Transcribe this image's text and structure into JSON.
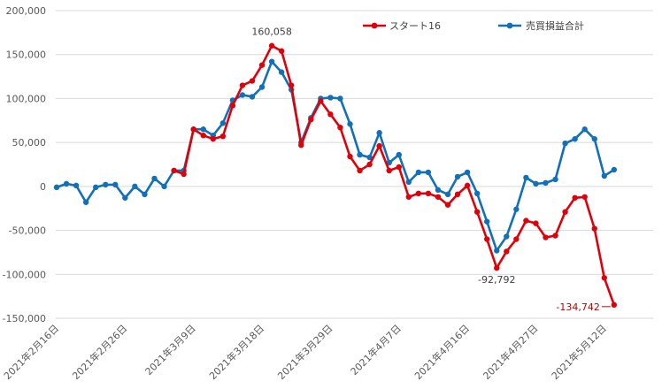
{
  "chart_data": {
    "type": "line",
    "title": "",
    "xlabel": "",
    "ylabel": "",
    "ylim": [
      -150000,
      200000
    ],
    "yticks": [
      200000,
      150000,
      100000,
      50000,
      0,
      -50000,
      -100000,
      -150000
    ],
    "ytick_labels": [
      "200,000",
      "150,000",
      "100,000",
      "50,000",
      "0",
      "-50,000",
      "-100,000",
      "-150,000"
    ],
    "x_tick_labels": [
      {
        "index": 0,
        "label": "2021年2月16日"
      },
      {
        "index": 7,
        "label": "2021年2月26日"
      },
      {
        "index": 14,
        "label": "2021年3月9日"
      },
      {
        "index": 21,
        "label": "2021年3月18日"
      },
      {
        "index": 28,
        "label": "2021年3月29日"
      },
      {
        "index": 35,
        "label": "2021年4月7日"
      },
      {
        "index": 42,
        "label": "2021年4月16日"
      },
      {
        "index": 49,
        "label": "2021年4月27日"
      },
      {
        "index": 56,
        "label": "2021年5月12日"
      }
    ],
    "grid": true,
    "legend_position": "top",
    "series": [
      {
        "name": "スタート16",
        "color": "#e0000a",
        "start_index": 12,
        "values": [
          18000,
          14000,
          65000,
          58000,
          54000,
          57000,
          92000,
          115000,
          120000,
          138000,
          160058,
          154000,
          115000,
          47000,
          76000,
          97000,
          82000,
          67000,
          34000,
          18000,
          25000,
          46000,
          18000,
          22000,
          -12000,
          -8000,
          -8000,
          -12000,
          -21000,
          -9000,
          1000,
          -29000,
          -60000,
          -92792,
          -74000,
          -60000,
          -39000,
          -42000,
          -58000,
          -56000,
          -29000,
          -13000,
          -12000,
          -48000,
          -104000,
          -134742
        ]
      },
      {
        "name": "売買損益合計",
        "color": "#1170b8",
        "start_index": 0,
        "values": [
          -1000,
          3000,
          1000,
          -18000,
          -1000,
          2000,
          2000,
          -13000,
          0,
          -9000,
          9000,
          0,
          18000,
          18000,
          65000,
          65000,
          58000,
          72000,
          98000,
          104000,
          102000,
          113000,
          142000,
          130000,
          110000,
          50000,
          78000,
          100000,
          101000,
          100000,
          71000,
          36000,
          33000,
          61000,
          27000,
          36000,
          5000,
          16000,
          16000,
          -4000,
          -9000,
          11000,
          16000,
          -8000,
          -40000,
          -73000,
          -57000,
          -26000,
          10000,
          3000,
          4000,
          8000,
          49000,
          54000,
          65000,
          54000,
          12000,
          19000
        ]
      }
    ],
    "annotations": [
      {
        "text": "160,058",
        "series": 0,
        "index": 22
      },
      {
        "text": "-92,792",
        "series": 0,
        "index": 45
      },
      {
        "text": "-134,742",
        "series": 0,
        "index": 57
      }
    ]
  }
}
